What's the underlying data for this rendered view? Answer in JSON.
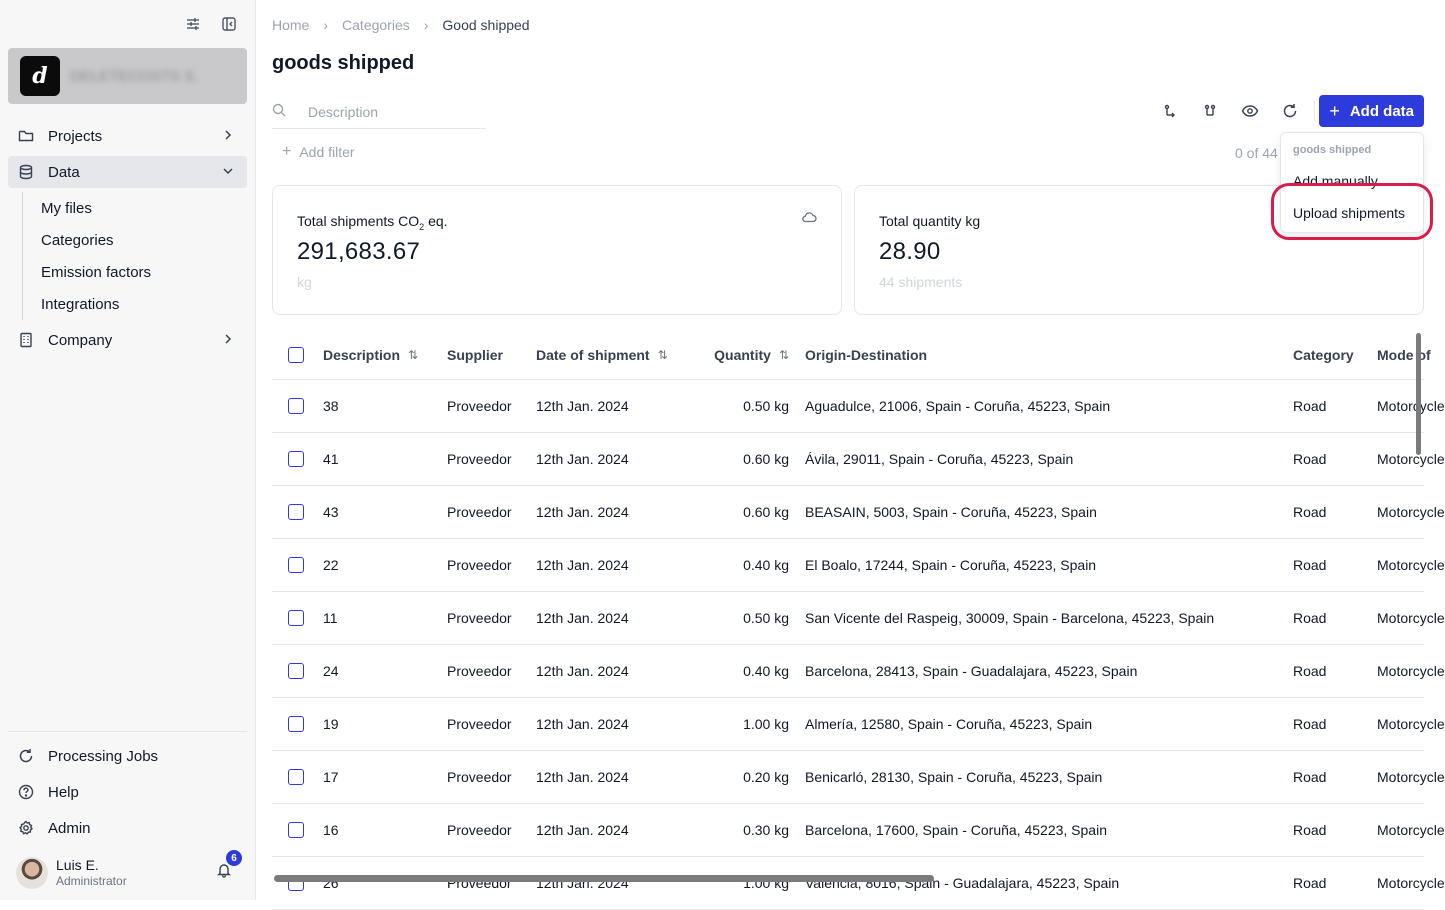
{
  "sidebar": {
    "org_name": "DELETECOSTS S.",
    "nav": [
      {
        "label": "Projects"
      },
      {
        "label": "Data"
      },
      {
        "label": "Company"
      }
    ],
    "data_sub": [
      "My files",
      "Categories",
      "Emission factors",
      "Integrations"
    ],
    "bottom": [
      {
        "label": "Processing Jobs"
      },
      {
        "label": "Help"
      },
      {
        "label": "Admin"
      }
    ],
    "user": {
      "name": "Luis E.",
      "role": "Administrator",
      "notifications": "6"
    }
  },
  "breadcrumb": [
    "Home",
    "Categories",
    "Good shipped"
  ],
  "page_title": "goods shipped",
  "search": {
    "placeholder": "Description"
  },
  "add_filter": "Add filter",
  "count_text": "0 of 44",
  "add_button": "Add data",
  "dropdown": {
    "header": "goods shipped",
    "items": [
      "Add manually",
      "Upload shipments"
    ]
  },
  "cards": [
    {
      "label": "Total shipments CO",
      "label_sub": "2",
      "label_suffix": " eq.",
      "value": "291,683.67",
      "unit": "kg"
    },
    {
      "label": "Total quantity kg",
      "value": "28.90",
      "unit": "44 shipments"
    }
  ],
  "table": {
    "headers": {
      "description": "Description",
      "supplier": "Supplier",
      "date": "Date of shipment",
      "quantity": "Quantity",
      "origin_destination": "Origin-Destination",
      "category": "Category",
      "mode": "Mode of"
    },
    "rows": [
      {
        "description": "38",
        "supplier": "Proveedor",
        "date": "12th Jan. 2024",
        "quantity": "0.50 kg",
        "od": "Aguadulce, 21006, Spain - Coruña, 45223, Spain",
        "category": "Road",
        "mode": "Motorcycle"
      },
      {
        "description": "41",
        "supplier": "Proveedor",
        "date": "12th Jan. 2024",
        "quantity": "0.60 kg",
        "od": "Ávila, 29011, Spain - Coruña, 45223, Spain",
        "category": "Road",
        "mode": "Motorcycle"
      },
      {
        "description": "43",
        "supplier": "Proveedor",
        "date": "12th Jan. 2024",
        "quantity": "0.60 kg",
        "od": "BEASAIN, 5003, Spain - Coruña, 45223, Spain",
        "category": "Road",
        "mode": "Motorcycle"
      },
      {
        "description": "22",
        "supplier": "Proveedor",
        "date": "12th Jan. 2024",
        "quantity": "0.40 kg",
        "od": "El Boalo, 17244, Spain - Coruña, 45223, Spain",
        "category": "Road",
        "mode": "Motorcycle"
      },
      {
        "description": "11",
        "supplier": "Proveedor",
        "date": "12th Jan. 2024",
        "quantity": "0.50 kg",
        "od": "San Vicente del Raspeig, 30009, Spain - Barcelona, 45223, Spain",
        "category": "Road",
        "mode": "Motorcycle"
      },
      {
        "description": "24",
        "supplier": "Proveedor",
        "date": "12th Jan. 2024",
        "quantity": "0.40 kg",
        "od": "Barcelona, 28413, Spain - Guadalajara, 45223, Spain",
        "category": "Road",
        "mode": "Motorcycle"
      },
      {
        "description": "19",
        "supplier": "Proveedor",
        "date": "12th Jan. 2024",
        "quantity": "1.00 kg",
        "od": "Almería, 12580, Spain - Coruña, 45223, Spain",
        "category": "Road",
        "mode": "Motorcycle"
      },
      {
        "description": "17",
        "supplier": "Proveedor",
        "date": "12th Jan. 2024",
        "quantity": "0.20 kg",
        "od": "Benicarló, 28130, Spain - Coruña, 45223, Spain",
        "category": "Road",
        "mode": "Motorcycle"
      },
      {
        "description": "16",
        "supplier": "Proveedor",
        "date": "12th Jan. 2024",
        "quantity": "0.30 kg",
        "od": "Barcelona, 17600, Spain - Coruña, 45223, Spain",
        "category": "Road",
        "mode": "Motorcycle"
      },
      {
        "description": "26",
        "supplier": "Proveedor",
        "date": "12th Jan. 2024",
        "quantity": "1.00 kg",
        "od": "València, 8016, Spain - Guadalajara, 45223, Spain",
        "category": "Road",
        "mode": "Motorcycle"
      }
    ]
  },
  "colors": {
    "accent": "#2e3bdb",
    "highlight": "#d91c4a"
  },
  "icons": [
    "filters-icon",
    "collapse-sidebar-icon",
    "folder-icon",
    "database-icon",
    "building-icon",
    "refresh-icon",
    "help-icon",
    "gear-icon",
    "bell-icon",
    "search-icon",
    "plus-icon",
    "cloud-icon",
    "eye-icon",
    "chevron-right-icon",
    "chevron-down-icon",
    "sort-icon"
  ]
}
